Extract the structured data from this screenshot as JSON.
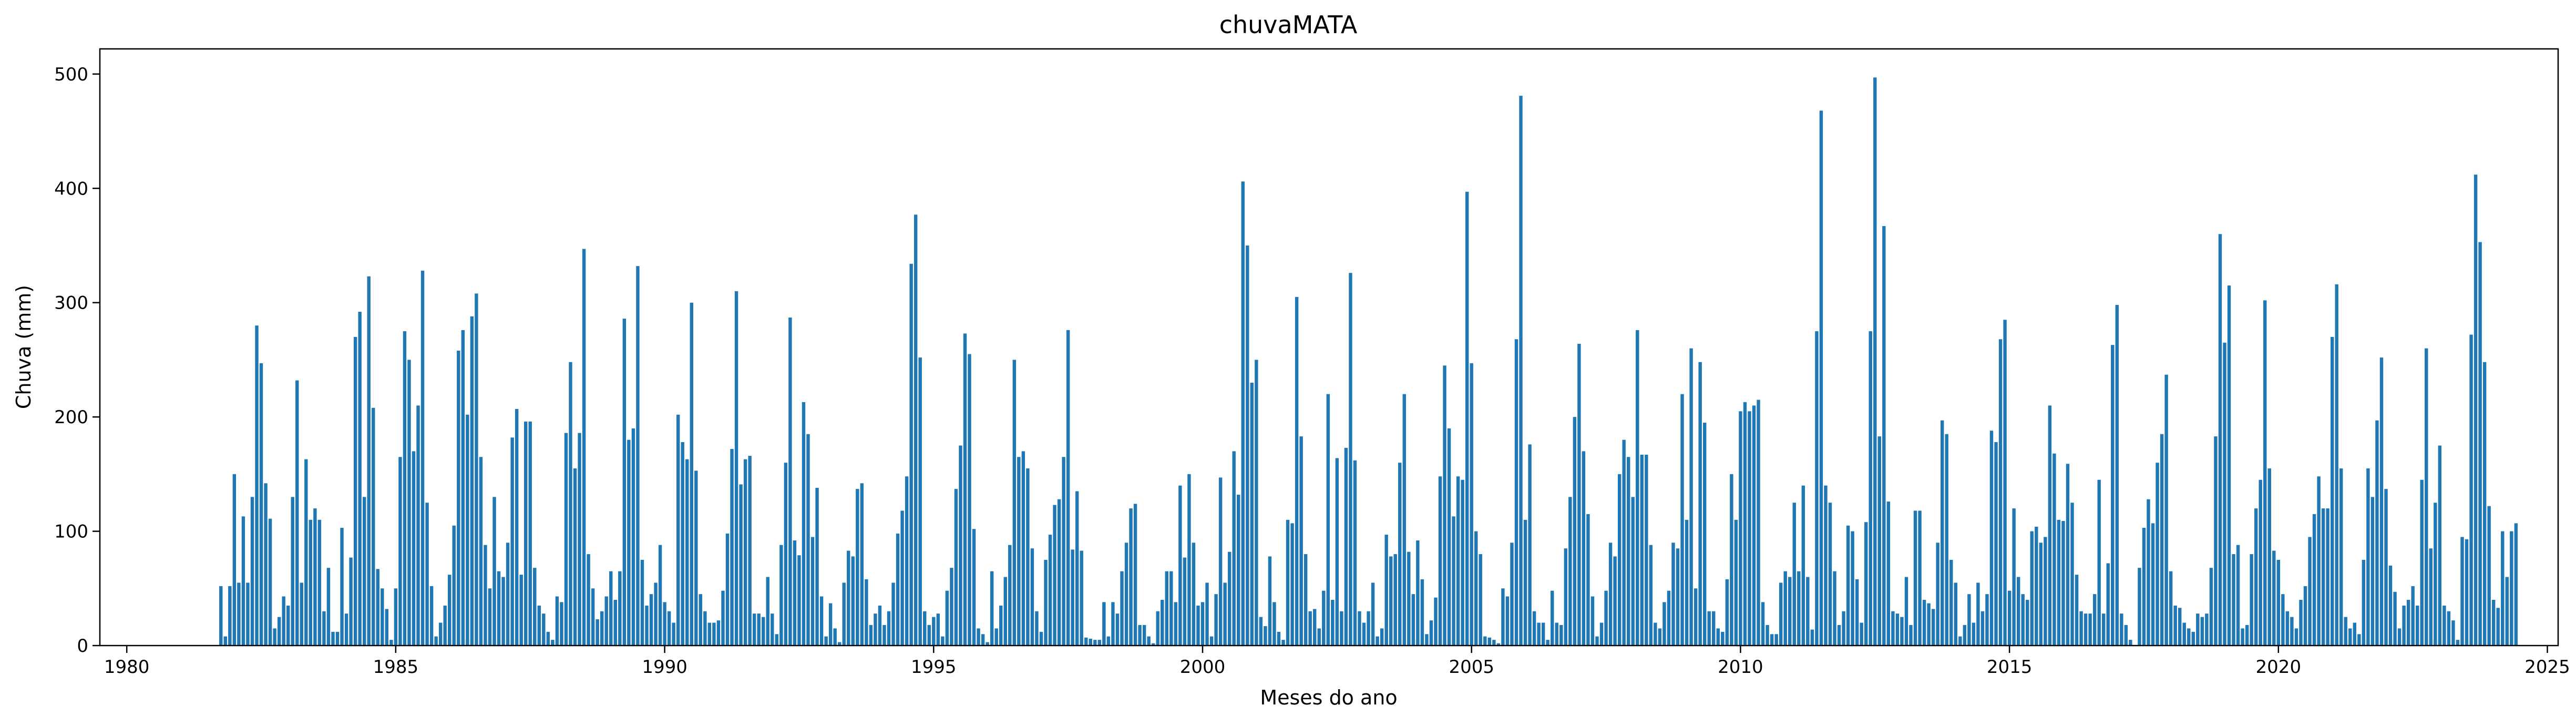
{
  "chart_data": {
    "type": "bar",
    "title": "chuvaMATA",
    "xlabel": "Meses do ano",
    "ylabel": "Chuva (mm)",
    "xlim": [
      1979.5,
      2025.2
    ],
    "ylim": [
      0,
      522
    ],
    "x_ticks": [
      1980,
      1985,
      1990,
      1995,
      2000,
      2005,
      2010,
      2015,
      2020,
      2025
    ],
    "y_ticks": [
      0,
      100,
      200,
      300,
      400,
      500
    ],
    "grid": false,
    "bar_color": "#1f77b4",
    "start_month": "1981-10",
    "series": [
      {
        "values": [
          52,
          8,
          52,
          150,
          55,
          113,
          55,
          130,
          280,
          247,
          142,
          111,
          15,
          25,
          43,
          35,
          130,
          232,
          55,
          163,
          110,
          120,
          110,
          30,
          68,
          12,
          12,
          103,
          28,
          77,
          270,
          292,
          130,
          323,
          208,
          67,
          50,
          32,
          5,
          50,
          165,
          275,
          250,
          170,
          210,
          328,
          125,
          52,
          8,
          20,
          35,
          62,
          105,
          258,
          276,
          202,
          288,
          308,
          165,
          88,
          50,
          130,
          65,
          60,
          90,
          182,
          207,
          62,
          196,
          196,
          68,
          35,
          28,
          12,
          5,
          43,
          38,
          186,
          248,
          155,
          186,
          347,
          80,
          50,
          23,
          30,
          43,
          65,
          40,
          65,
          286,
          180,
          190,
          332,
          75,
          35,
          45,
          55,
          88,
          38,
          30,
          20,
          202,
          178,
          163,
          300,
          153,
          45,
          30,
          20,
          20,
          22,
          48,
          98,
          172,
          310,
          141,
          163,
          166,
          28,
          28,
          25,
          60,
          28,
          10,
          88,
          160,
          287,
          92,
          79,
          213,
          185,
          95,
          138,
          43,
          8,
          37,
          15,
          3,
          55,
          83,
          78,
          137,
          142,
          58,
          18,
          28,
          35,
          18,
          30,
          55,
          98,
          118,
          148,
          334,
          377,
          252,
          30,
          18,
          25,
          28,
          8,
          48,
          68,
          137,
          175,
          273,
          255,
          102,
          15,
          10,
          3,
          65,
          15,
          35,
          60,
          88,
          250,
          165,
          170,
          155,
          85,
          30,
          12,
          75,
          97,
          123,
          128,
          165,
          276,
          84,
          135,
          83,
          7,
          6,
          5,
          5,
          38,
          8,
          38,
          28,
          65,
          90,
          120,
          124,
          18,
          18,
          8,
          2,
          30,
          40,
          65,
          65,
          38,
          140,
          77,
          150,
          90,
          35,
          38,
          55,
          8,
          45,
          147,
          55,
          82,
          170,
          132,
          406,
          350,
          230,
          250,
          25,
          17,
          78,
          38,
          12,
          5,
          110,
          107,
          305,
          183,
          80,
          30,
          32,
          15,
          48,
          220,
          40,
          164,
          30,
          173,
          326,
          162,
          30,
          20,
          30,
          55,
          8,
          15,
          97,
          78,
          80,
          160,
          220,
          82,
          45,
          92,
          58,
          10,
          22,
          42,
          148,
          245,
          190,
          113,
          148,
          145,
          397,
          247,
          100,
          80,
          8,
          7,
          5,
          2,
          50,
          43,
          90,
          268,
          481,
          110,
          176,
          30,
          20,
          20,
          5,
          48,
          20,
          18,
          85,
          130,
          200,
          264,
          170,
          115,
          43,
          8,
          20,
          48,
          90,
          78,
          150,
          180,
          165,
          130,
          276,
          167,
          167,
          88,
          20,
          15,
          38,
          48,
          90,
          85,
          220,
          110,
          260,
          50,
          248,
          195,
          30,
          30,
          15,
          12,
          58,
          150,
          110,
          205,
          213,
          205,
          210,
          215,
          38,
          18,
          10,
          10,
          55,
          65,
          60,
          125,
          65,
          140,
          60,
          14,
          275,
          468,
          140,
          125,
          65,
          18,
          30,
          105,
          100,
          58,
          20,
          108,
          275,
          497,
          183,
          367,
          126,
          30,
          28,
          25,
          60,
          18,
          118,
          118,
          40,
          37,
          32,
          90,
          197,
          185,
          75,
          55,
          8,
          18,
          45,
          20,
          55,
          30,
          45,
          188,
          178,
          268,
          285,
          48,
          120,
          60,
          45,
          40,
          100,
          104,
          90,
          95,
          210,
          168,
          110,
          109,
          159,
          125,
          62,
          30,
          28,
          28,
          45,
          145,
          28,
          72,
          263,
          298,
          28,
          18,
          5,
          0,
          68,
          103,
          128,
          107,
          160,
          185,
          237,
          65,
          35,
          33,
          20,
          15,
          12,
          28,
          25,
          28,
          68,
          183,
          360,
          265,
          315,
          80,
          88,
          15,
          18,
          80,
          120,
          145,
          302,
          155,
          83,
          75,
          45,
          30,
          25,
          15,
          40,
          52,
          95,
          115,
          148,
          120,
          120,
          270,
          316,
          155,
          25,
          15,
          20,
          10,
          75,
          155,
          130,
          197,
          252,
          137,
          70,
          47,
          15,
          35,
          40,
          52,
          35,
          145,
          260,
          85,
          125,
          175,
          35,
          30,
          22,
          5,
          95,
          93,
          272,
          412,
          353,
          248,
          122,
          40,
          33,
          100,
          60,
          100,
          107
        ]
      }
    ]
  }
}
